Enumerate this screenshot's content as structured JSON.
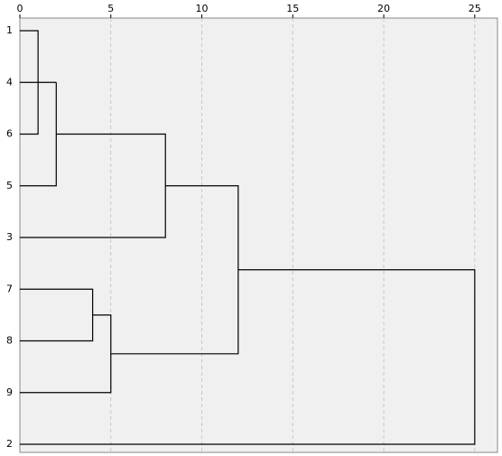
{
  "chart_data": {
    "type": "dendrogram",
    "categories": [
      "1",
      "4",
      "6",
      "5",
      "3",
      "7",
      "8",
      "9",
      "2"
    ],
    "merges": [
      {
        "left": 0,
        "right": 2,
        "height": 1
      },
      {
        "left": 9,
        "right": 1,
        "height": 2
      },
      {
        "left": 10,
        "right": 3,
        "height": 2
      },
      {
        "left": 11,
        "right": 4,
        "height": 8
      },
      {
        "left": 5,
        "right": 6,
        "height": 4
      },
      {
        "left": 13,
        "right": 7,
        "height": 5
      },
      {
        "left": 12,
        "right": 14,
        "height": 12
      },
      {
        "left": 15,
        "right": 8,
        "height": 25
      }
    ],
    "xlim": [
      0,
      26.25
    ],
    "xticks": [
      0,
      5,
      10,
      15,
      20,
      25
    ],
    "grid": true,
    "color": "#000000",
    "background": "#f0f0f0"
  }
}
